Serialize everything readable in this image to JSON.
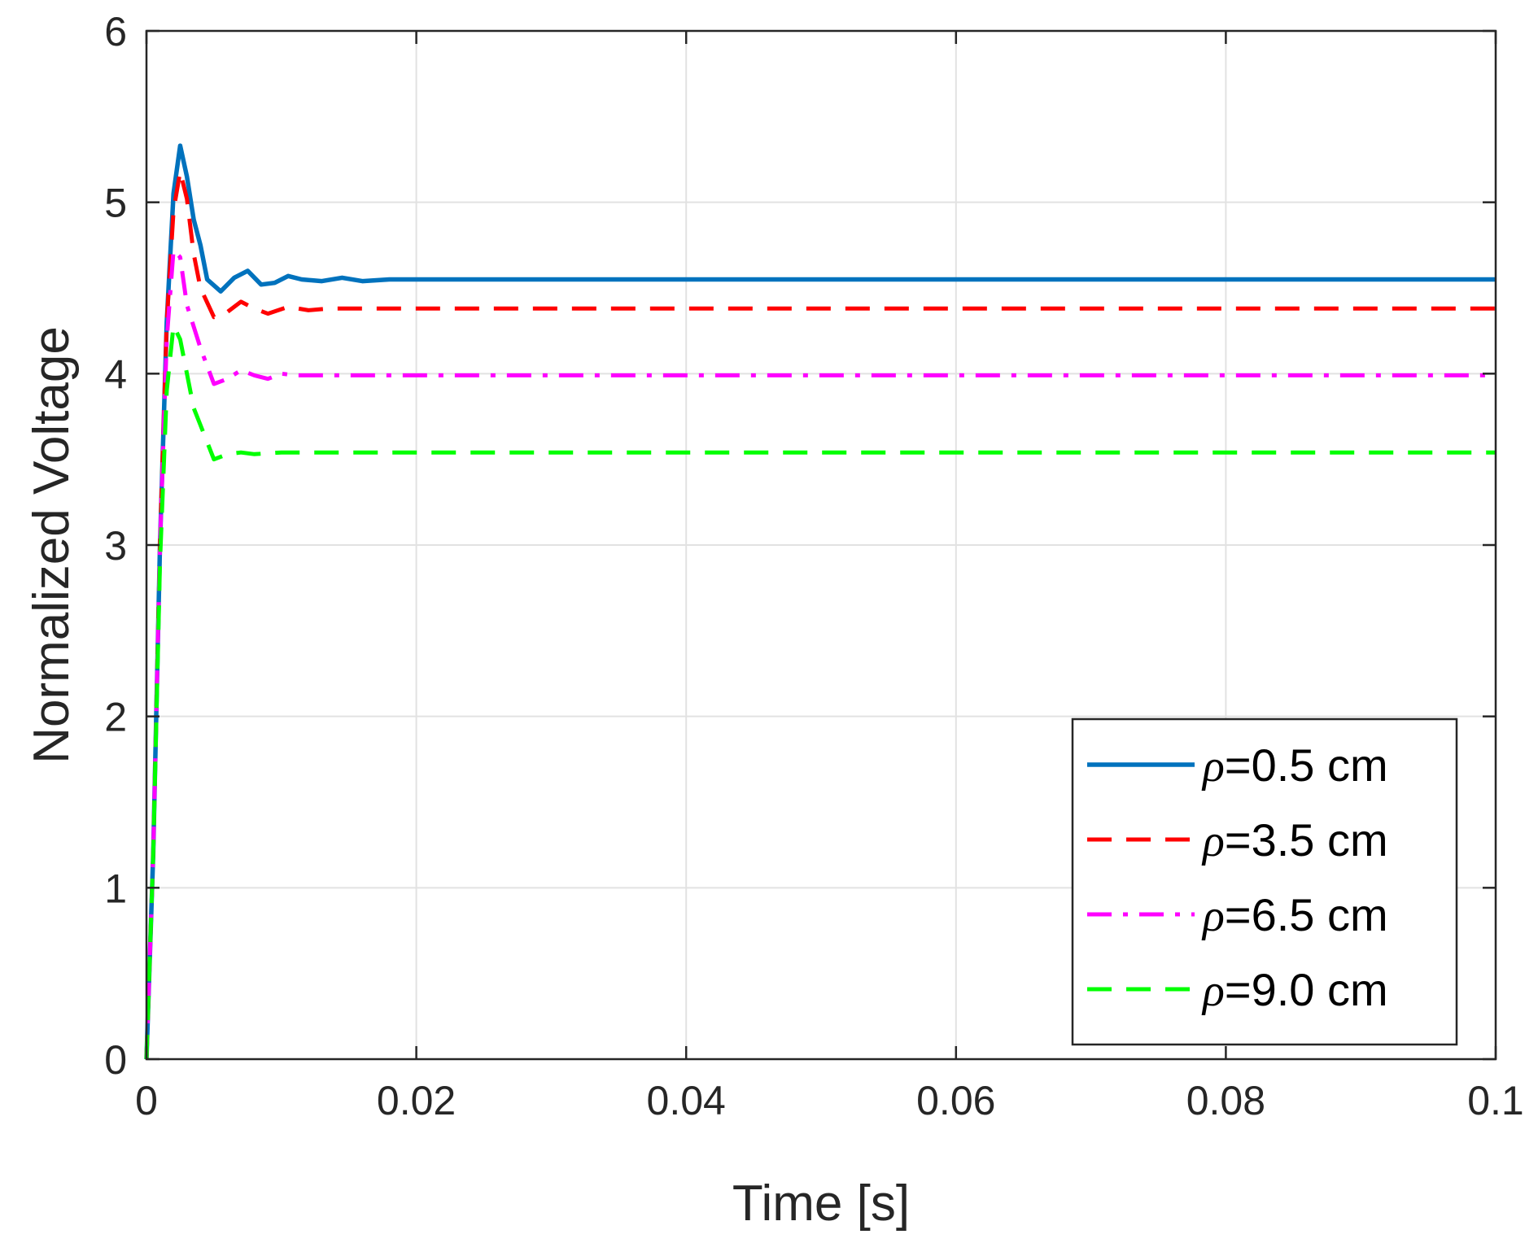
{
  "chart_data": {
    "type": "line",
    "title": "",
    "xlabel": "Time [s]",
    "ylabel": "Normalized Voltage",
    "xlim": [
      0,
      0.1
    ],
    "ylim": [
      0,
      6
    ],
    "xticks": [
      0,
      0.02,
      0.04,
      0.06,
      0.08,
      0.1
    ],
    "xtick_labels": [
      "0",
      "0.02",
      "0.04",
      "0.06",
      "0.08",
      "0.1"
    ],
    "yticks": [
      0,
      1,
      2,
      3,
      4,
      5,
      6
    ],
    "ytick_labels": [
      "0",
      "1",
      "2",
      "3",
      "4",
      "5",
      "6"
    ],
    "grid": true,
    "legend_position": "bottom-right",
    "series": [
      {
        "name": "=0.5 cm",
        "symbol": "ρ",
        "color": "#0072BD",
        "style": "solid",
        "points": [
          [
            0,
            0
          ],
          [
            0.0005,
            1.2
          ],
          [
            0.001,
            3.0
          ],
          [
            0.0015,
            4.3
          ],
          [
            0.002,
            5.05
          ],
          [
            0.0025,
            5.33
          ],
          [
            0.003,
            5.15
          ],
          [
            0.0035,
            4.9
          ],
          [
            0.004,
            4.75
          ],
          [
            0.0045,
            4.55
          ],
          [
            0.0055,
            4.48
          ],
          [
            0.0065,
            4.56
          ],
          [
            0.0075,
            4.6
          ],
          [
            0.0085,
            4.52
          ],
          [
            0.0095,
            4.53
          ],
          [
            0.0105,
            4.57
          ],
          [
            0.0115,
            4.55
          ],
          [
            0.013,
            4.54
          ],
          [
            0.0145,
            4.56
          ],
          [
            0.016,
            4.54
          ],
          [
            0.018,
            4.55
          ],
          [
            0.02,
            4.55
          ],
          [
            0.1,
            4.55
          ]
        ]
      },
      {
        "name": "=3.5 cm",
        "symbol": "ρ",
        "color": "#FF0000",
        "style": "dashed",
        "points": [
          [
            0,
            0
          ],
          [
            0.0005,
            1.2
          ],
          [
            0.001,
            3.0
          ],
          [
            0.0015,
            4.3
          ],
          [
            0.002,
            4.95
          ],
          [
            0.0025,
            5.18
          ],
          [
            0.003,
            5.02
          ],
          [
            0.0035,
            4.7
          ],
          [
            0.004,
            4.5
          ],
          [
            0.005,
            4.33
          ],
          [
            0.006,
            4.36
          ],
          [
            0.007,
            4.42
          ],
          [
            0.008,
            4.38
          ],
          [
            0.009,
            4.35
          ],
          [
            0.0105,
            4.39
          ],
          [
            0.012,
            4.37
          ],
          [
            0.0135,
            4.38
          ],
          [
            0.016,
            4.38
          ],
          [
            0.1,
            4.38
          ]
        ]
      },
      {
        "name": "=6.5 cm",
        "symbol": "ρ",
        "color": "#FF00FF",
        "style": "dashdot",
        "points": [
          [
            0,
            0
          ],
          [
            0.0005,
            1.2
          ],
          [
            0.001,
            3.0
          ],
          [
            0.0015,
            4.2
          ],
          [
            0.002,
            4.72
          ],
          [
            0.0025,
            4.68
          ],
          [
            0.003,
            4.4
          ],
          [
            0.004,
            4.15
          ],
          [
            0.005,
            3.94
          ],
          [
            0.006,
            3.97
          ],
          [
            0.007,
            4.02
          ],
          [
            0.008,
            3.99
          ],
          [
            0.009,
            3.97
          ],
          [
            0.01,
            4.0
          ],
          [
            0.011,
            3.99
          ],
          [
            0.013,
            3.99
          ],
          [
            0.1,
            3.99
          ]
        ]
      },
      {
        "name": "=9.0 cm",
        "symbol": "ρ",
        "color": "#00FF00",
        "style": "dashed",
        "points": [
          [
            0,
            0
          ],
          [
            0.0005,
            1.2
          ],
          [
            0.001,
            2.9
          ],
          [
            0.0015,
            3.9
          ],
          [
            0.002,
            4.28
          ],
          [
            0.0025,
            4.2
          ],
          [
            0.003,
            4.0
          ],
          [
            0.0035,
            3.8
          ],
          [
            0.004,
            3.7
          ],
          [
            0.0045,
            3.6
          ],
          [
            0.005,
            3.5
          ],
          [
            0.006,
            3.53
          ],
          [
            0.007,
            3.54
          ],
          [
            0.008,
            3.53
          ],
          [
            0.01,
            3.54
          ],
          [
            0.1,
            3.54
          ]
        ]
      }
    ]
  }
}
